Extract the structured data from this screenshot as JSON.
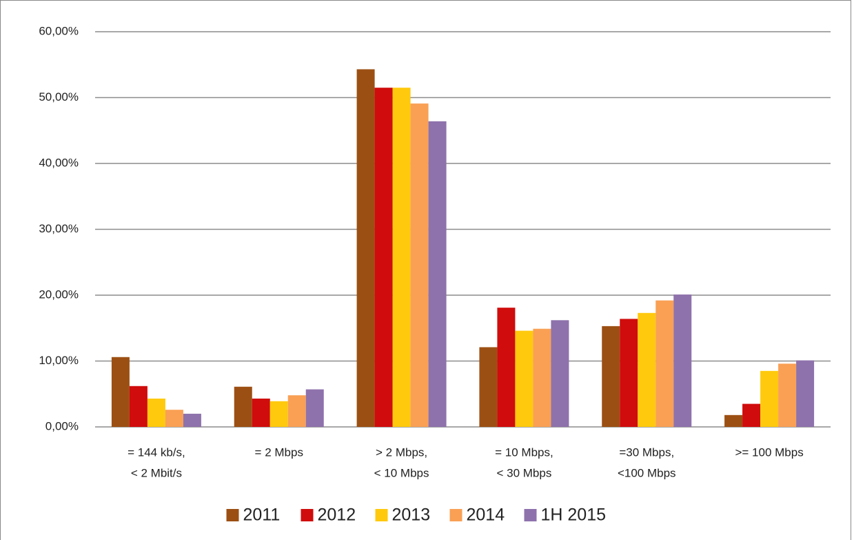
{
  "chart_data": {
    "type": "bar",
    "categories": [
      [
        "= 144 kb/s,",
        "< 2 Mbit/s"
      ],
      [
        "= 2 Mbps"
      ],
      [
        "> 2 Mbps,",
        "< 10 Mbps"
      ],
      [
        "= 10 Mbps,",
        "< 30 Mbps"
      ],
      [
        "=30 Mbps,",
        "<100 Mbps"
      ],
      [
        ">= 100 Mbps"
      ]
    ],
    "series": [
      {
        "name": "2011",
        "color": "#9c4f13",
        "values": [
          10.6,
          6.1,
          54.3,
          12.1,
          15.3,
          1.8
        ]
      },
      {
        "name": "2012",
        "color": "#d00c0c",
        "values": [
          6.2,
          4.3,
          51.5,
          18.1,
          16.4,
          3.5
        ]
      },
      {
        "name": "2013",
        "color": "#ffc90d",
        "values": [
          4.3,
          3.9,
          51.5,
          14.6,
          17.3,
          8.5
        ]
      },
      {
        "name": "2014",
        "color": "#f9a055",
        "values": [
          2.6,
          4.8,
          49.1,
          14.9,
          19.2,
          9.6
        ]
      },
      {
        "name": "1H 2015",
        "color": "#8e72ac",
        "values": [
          2.0,
          5.7,
          46.4,
          16.2,
          20.1,
          10.1
        ]
      }
    ],
    "ylim": [
      0,
      60
    ],
    "yticks": [
      {
        "value": 0,
        "label": "0,00%"
      },
      {
        "value": 10,
        "label": "10,00%"
      },
      {
        "value": 20,
        "label": "20,00%"
      },
      {
        "value": 30,
        "label": "30,00%"
      },
      {
        "value": 40,
        "label": "40,00%"
      },
      {
        "value": 50,
        "label": "50,00%"
      },
      {
        "value": 60,
        "label": "60,00%"
      }
    ],
    "grid": true,
    "legend": "bottom"
  }
}
